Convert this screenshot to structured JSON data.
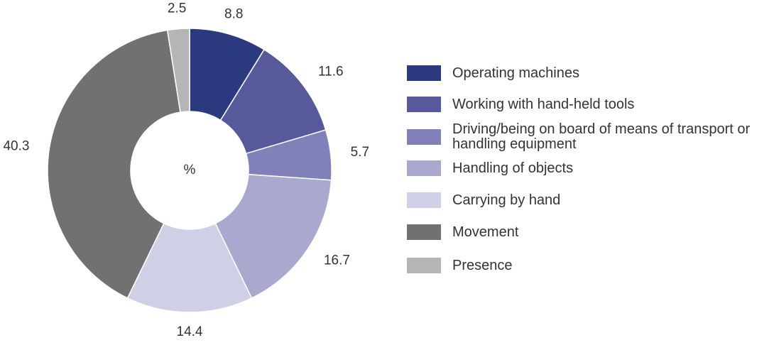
{
  "chart_data": {
    "type": "donut",
    "center_label": "%",
    "categories": [
      "Operating machines",
      "Working with hand-held tools",
      "Driving/being on board of means of transport or handling equipment",
      "Handling of objects",
      "Carrying by hand",
      "Movement",
      "Presence"
    ],
    "values": [
      8.8,
      11.6,
      5.7,
      16.7,
      14.4,
      40.3,
      2.5
    ],
    "colors": [
      "#2b3a7e",
      "#58589c",
      "#8081b8",
      "#a9a9d0",
      "#cfcfe6",
      "#717171",
      "#b4b5b4"
    ],
    "legend": "right"
  }
}
